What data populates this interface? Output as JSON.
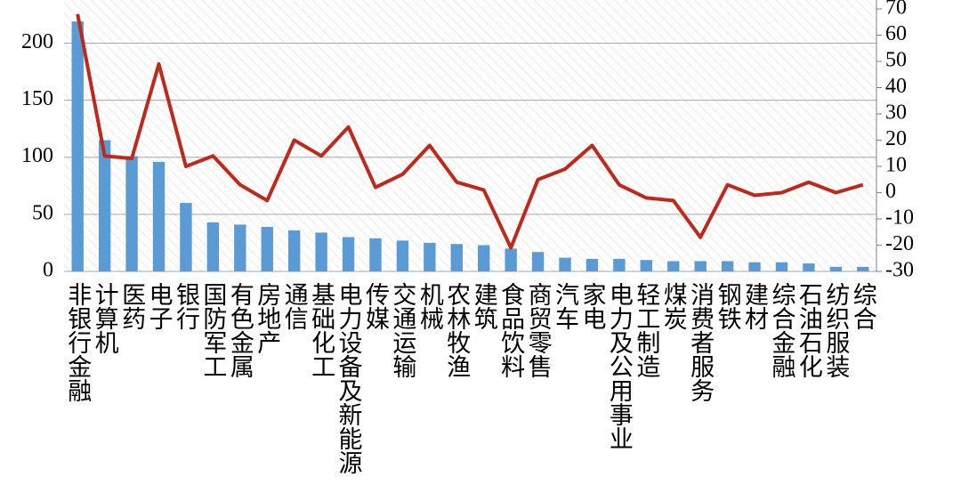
{
  "chart_data": {
    "type": "bar",
    "categories": [
      "非银行金融",
      "计算机",
      "医药",
      "电子",
      "银行",
      "国防军工",
      "有色金属",
      "房地产",
      "通信",
      "基础化工",
      "电力设备及新能源",
      "传媒",
      "交通运输",
      "机械",
      "农林牧渔",
      "建筑",
      "食品饮料",
      "商贸零售",
      "汽车",
      "家电",
      "电力及公用事业",
      "轻工制造",
      "煤炭",
      "消费者服务",
      "钢铁",
      "建材",
      "综合金融",
      "石油石化",
      "纺织服装",
      "综合"
    ],
    "series": [
      {
        "type": "bar",
        "color": "#5b9bd5",
        "values": [
          219,
          115,
          101,
          96,
          60,
          43,
          41,
          39,
          36,
          34,
          30,
          29,
          27,
          25,
          24,
          23,
          20,
          17,
          12,
          11,
          11,
          10,
          9,
          9,
          9,
          8,
          8,
          7,
          4,
          4
        ]
      },
      {
        "type": "line",
        "axis": "y2",
        "color": "#c0281c",
        "values": [
          68,
          14,
          13,
          49,
          10,
          14,
          3,
          -3,
          20,
          14,
          25,
          2,
          7,
          18,
          4,
          1,
          -21,
          5,
          9,
          18,
          3,
          -2,
          -3,
          -17,
          3,
          -1,
          0,
          4,
          0,
          3
        ]
      }
    ],
    "ylim": [
      0,
      230
    ],
    "yticks": [
      0,
      50,
      100,
      150,
      200
    ],
    "y2lim": [
      -30,
      70
    ],
    "y2ticks": [
      -30,
      -20,
      -10,
      0,
      10,
      20,
      30,
      40,
      50,
      60,
      70
    ],
    "grid": true
  }
}
